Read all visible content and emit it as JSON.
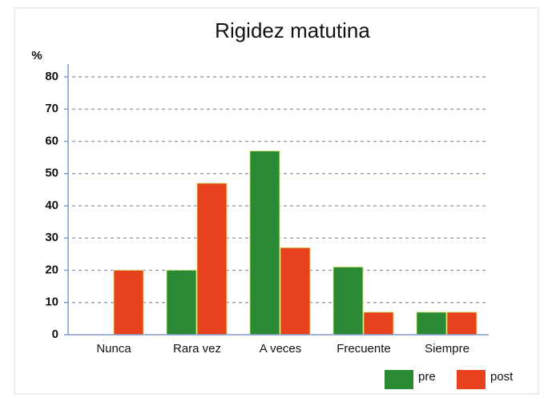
{
  "chart_data": {
    "type": "bar",
    "title": "Rigidez matutina",
    "y_label": "%",
    "categories": [
      "Nunca",
      "Rara vez",
      "A veces",
      "Frecuente",
      "Siempre"
    ],
    "series": [
      {
        "name": "pre",
        "color": "#2b8a36",
        "values": [
          0,
          20,
          57,
          21,
          7
        ]
      },
      {
        "name": "post",
        "color": "#e8411d",
        "values": [
          20,
          47,
          27,
          7,
          7
        ]
      }
    ],
    "ylim": [
      0,
      80
    ],
    "yticks": [
      0,
      10,
      20,
      30,
      40,
      50,
      60,
      70,
      80
    ],
    "grid": true,
    "legend": "bottom-right"
  }
}
